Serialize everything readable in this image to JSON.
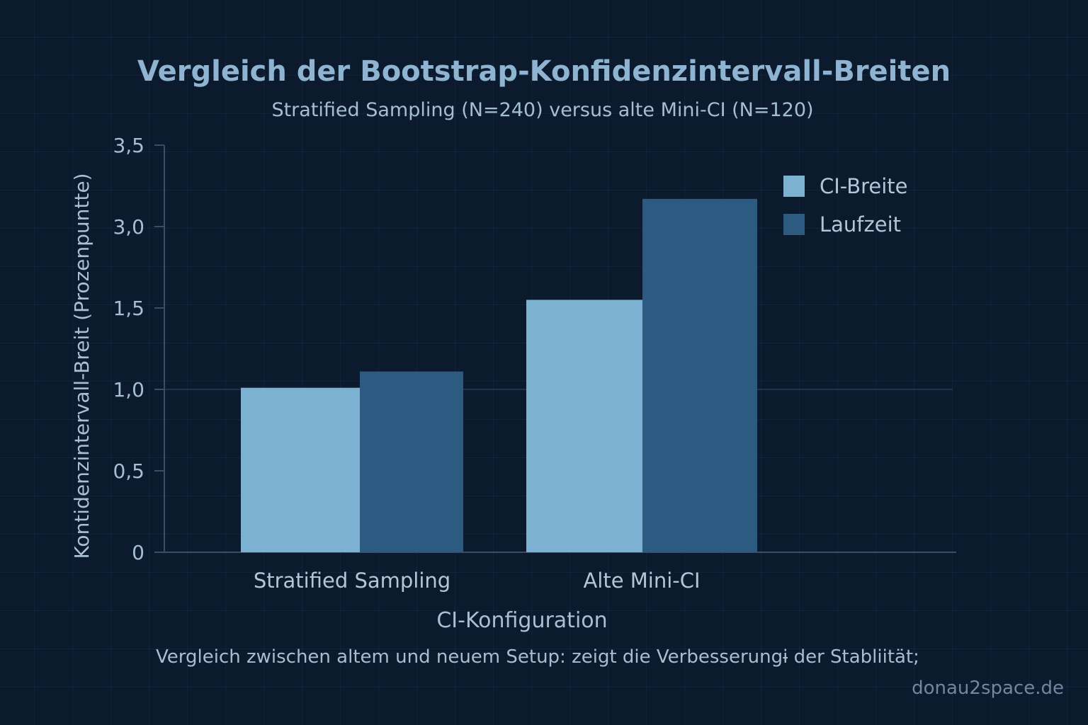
{
  "header": {
    "title": "Vergleich der Bootstrap-Konfidenzintervall-Breiten",
    "subtitle": "Stratified Sampling (N=240) versus alte Mini-CI (N=120)"
  },
  "footer": {
    "caption": "Vergleich zwischen altem und neuem Setup: zeigt die Verbesserungɨ der Stabliität;",
    "watermark": "donau2space.de"
  },
  "colors": {
    "background": "#0c1a2d",
    "axis": "#3a4d64",
    "tick_text": "#a6bed3"
  },
  "chart_data": {
    "type": "bar",
    "title": "Vergleich der Bootstrap-Konfidenzintervall-Breiten",
    "subtitle": "Stratified Sampling (N=240) versus alte Mini-CI (N=120)",
    "xlabel": "CI-Konfiguration",
    "ylabel": "Kontidenzintervall-Breit (Prozenpuntte)",
    "categories": [
      "Stratified Sampling",
      "Alte Mini-CI"
    ],
    "y_ticks": [
      "0",
      "0,5",
      "1,0",
      "1,5",
      "3,0",
      "3,5"
    ],
    "series": [
      {
        "name": "CI-Breite",
        "color": "#7cb1d2",
        "values": [
          1.01,
          1.65
        ]
      },
      {
        "name": "Laufzeit",
        "color": "#2c5a80",
        "values": [
          1.11,
          3.17
        ]
      }
    ],
    "legend_position": "top-right",
    "grid": true
  }
}
